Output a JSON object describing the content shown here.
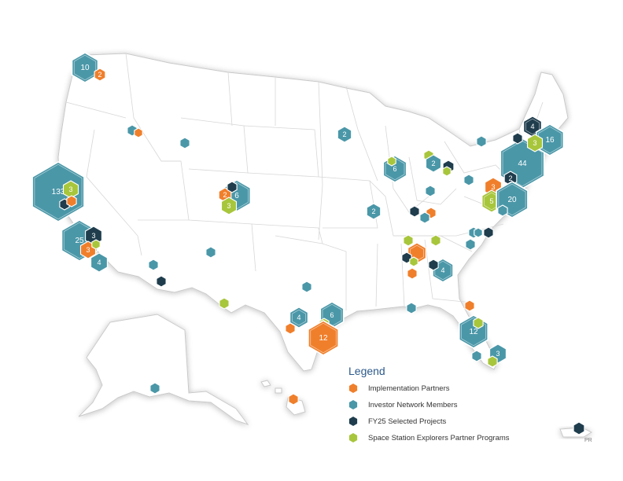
{
  "colors": {
    "implementation": "#f07f2b",
    "investor": "#4a97a8",
    "fy25": "#1f3d4d",
    "explorers": "#a8c63c",
    "legend_title": "#2c5a8c"
  },
  "legend": {
    "title": "Legend",
    "items": [
      {
        "key": "implementation",
        "label": "Implementation Partners"
      },
      {
        "key": "investor",
        "label": "Investor Network Members"
      },
      {
        "key": "fy25",
        "label": "FY25 Selected Projects"
      },
      {
        "key": "explorers",
        "label": "Space Station Explorers Partner Programs"
      }
    ]
  },
  "territory_label": "PR",
  "markers": [
    {
      "name": "wa-investor",
      "cat": "investor",
      "label": "10"
    },
    {
      "name": "wa-implementation",
      "cat": "implementation",
      "label": "2"
    },
    {
      "name": "id-investor",
      "cat": "investor",
      "label": ""
    },
    {
      "name": "id-implementation",
      "cat": "implementation",
      "label": ""
    },
    {
      "name": "mt-investor",
      "cat": "investor",
      "label": ""
    },
    {
      "name": "ca-north-investor",
      "cat": "investor",
      "label": "133"
    },
    {
      "name": "ca-north-explorers",
      "cat": "explorers",
      "label": "3"
    },
    {
      "name": "ca-north-fy25",
      "cat": "fy25",
      "label": ""
    },
    {
      "name": "ca-north-implementation",
      "cat": "implementation",
      "label": ""
    },
    {
      "name": "ca-south-investor",
      "cat": "investor",
      "label": "25"
    },
    {
      "name": "ca-south-fy25",
      "cat": "fy25",
      "label": "3"
    },
    {
      "name": "ca-south-implementation",
      "cat": "implementation",
      "label": "3"
    },
    {
      "name": "ca-south-explorers",
      "cat": "explorers",
      "label": ""
    },
    {
      "name": "ca-south-investor-small",
      "cat": "investor",
      "label": "4"
    },
    {
      "name": "co-investor",
      "cat": "investor",
      "label": "6"
    },
    {
      "name": "co-implementation",
      "cat": "implementation",
      "label": "2"
    },
    {
      "name": "co-fy25",
      "cat": "fy25",
      "label": ""
    },
    {
      "name": "co-explorers",
      "cat": "explorers",
      "label": "3"
    },
    {
      "name": "nm-investor",
      "cat": "investor",
      "label": ""
    },
    {
      "name": "az-investor",
      "cat": "investor",
      "label": ""
    },
    {
      "name": "az-fy25",
      "cat": "fy25",
      "label": ""
    },
    {
      "name": "tx-west-explorers",
      "cat": "explorers",
      "label": ""
    },
    {
      "name": "ok-investor",
      "cat": "investor",
      "label": ""
    },
    {
      "name": "tx-austin-investor",
      "cat": "investor",
      "label": "4"
    },
    {
      "name": "tx-austin-implementation",
      "cat": "implementation",
      "label": ""
    },
    {
      "name": "tx-houston-investor",
      "cat": "investor",
      "label": "6"
    },
    {
      "name": "tx-houston-explorers",
      "cat": "explorers",
      "label": ""
    },
    {
      "name": "tx-houston-implementation",
      "cat": "implementation",
      "label": "12"
    },
    {
      "name": "mn-investor",
      "cat": "investor",
      "label": "2"
    },
    {
      "name": "wi-investor",
      "cat": "investor",
      "label": "6"
    },
    {
      "name": "wi-explorers",
      "cat": "explorers",
      "label": ""
    },
    {
      "name": "mi-explorers",
      "cat": "explorers",
      "label": ""
    },
    {
      "name": "mi-investor",
      "cat": "investor",
      "label": "2"
    },
    {
      "name": "mi-fy25",
      "cat": "fy25",
      "label": ""
    },
    {
      "name": "mi-explorers-2",
      "cat": "explorers",
      "label": ""
    },
    {
      "name": "in-investor",
      "cat": "investor",
      "label": ""
    },
    {
      "name": "mo-investor",
      "cat": "investor",
      "label": "2"
    },
    {
      "name": "ky-fy25",
      "cat": "fy25",
      "label": ""
    },
    {
      "name": "ky-implementation",
      "cat": "implementation",
      "label": ""
    },
    {
      "name": "ky-investor",
      "cat": "investor",
      "label": ""
    },
    {
      "name": "oh-investor",
      "cat": "investor",
      "label": ""
    },
    {
      "name": "pa-implementation",
      "cat": "implementation",
      "label": "3"
    },
    {
      "name": "pa-explorers",
      "cat": "explorers",
      "label": "5"
    },
    {
      "name": "ny-investor",
      "cat": "investor",
      "label": "44"
    },
    {
      "name": "ny-fy25",
      "cat": "fy25",
      "label": "2"
    },
    {
      "name": "nj-investor",
      "cat": "investor",
      "label": "20"
    },
    {
      "name": "md-investor",
      "cat": "investor",
      "label": ""
    },
    {
      "name": "vt-fy25",
      "cat": "fy25",
      "label": "4"
    },
    {
      "name": "vt-fy25-small",
      "cat": "fy25",
      "label": ""
    },
    {
      "name": "ma-investor",
      "cat": "investor",
      "label": "16"
    },
    {
      "name": "ma-explorers",
      "cat": "explorers",
      "label": "3"
    },
    {
      "name": "ny-north-investor",
      "cat": "investor",
      "label": ""
    },
    {
      "name": "va-investor",
      "cat": "investor",
      "label": ""
    },
    {
      "name": "va-investor-2",
      "cat": "investor",
      "label": ""
    },
    {
      "name": "va-fy25",
      "cat": "fy25",
      "label": ""
    },
    {
      "name": "nc-investor",
      "cat": "investor",
      "label": ""
    },
    {
      "name": "ms-explorers",
      "cat": "explorers",
      "label": ""
    },
    {
      "name": "tn-explorers",
      "cat": "explorers",
      "label": ""
    },
    {
      "name": "al-implementation",
      "cat": "implementation",
      "label": ""
    },
    {
      "name": "al-fy25",
      "cat": "fy25",
      "label": ""
    },
    {
      "name": "al-explorers",
      "cat": "explorers",
      "label": ""
    },
    {
      "name": "al-implementation-2",
      "cat": "implementation",
      "label": ""
    },
    {
      "name": "ga-investor",
      "cat": "investor",
      "label": "4"
    },
    {
      "name": "ga-fy25",
      "cat": "fy25",
      "label": ""
    },
    {
      "name": "fl-panhandle-investor",
      "cat": "investor",
      "label": ""
    },
    {
      "name": "fl-jax-implementation",
      "cat": "implementation",
      "label": ""
    },
    {
      "name": "fl-central-investor",
      "cat": "investor",
      "label": "12"
    },
    {
      "name": "fl-central-explorers",
      "cat": "explorers",
      "label": ""
    },
    {
      "name": "fl-south-investor",
      "cat": "investor",
      "label": "3"
    },
    {
      "name": "fl-south-explorers",
      "cat": "explorers",
      "label": ""
    },
    {
      "name": "fl-south-investor-small",
      "cat": "investor",
      "label": ""
    },
    {
      "name": "ak-investor",
      "cat": "investor",
      "label": ""
    },
    {
      "name": "hi-implementation",
      "cat": "implementation",
      "label": ""
    },
    {
      "name": "pr-fy25",
      "cat": "fy25",
      "label": ""
    }
  ]
}
